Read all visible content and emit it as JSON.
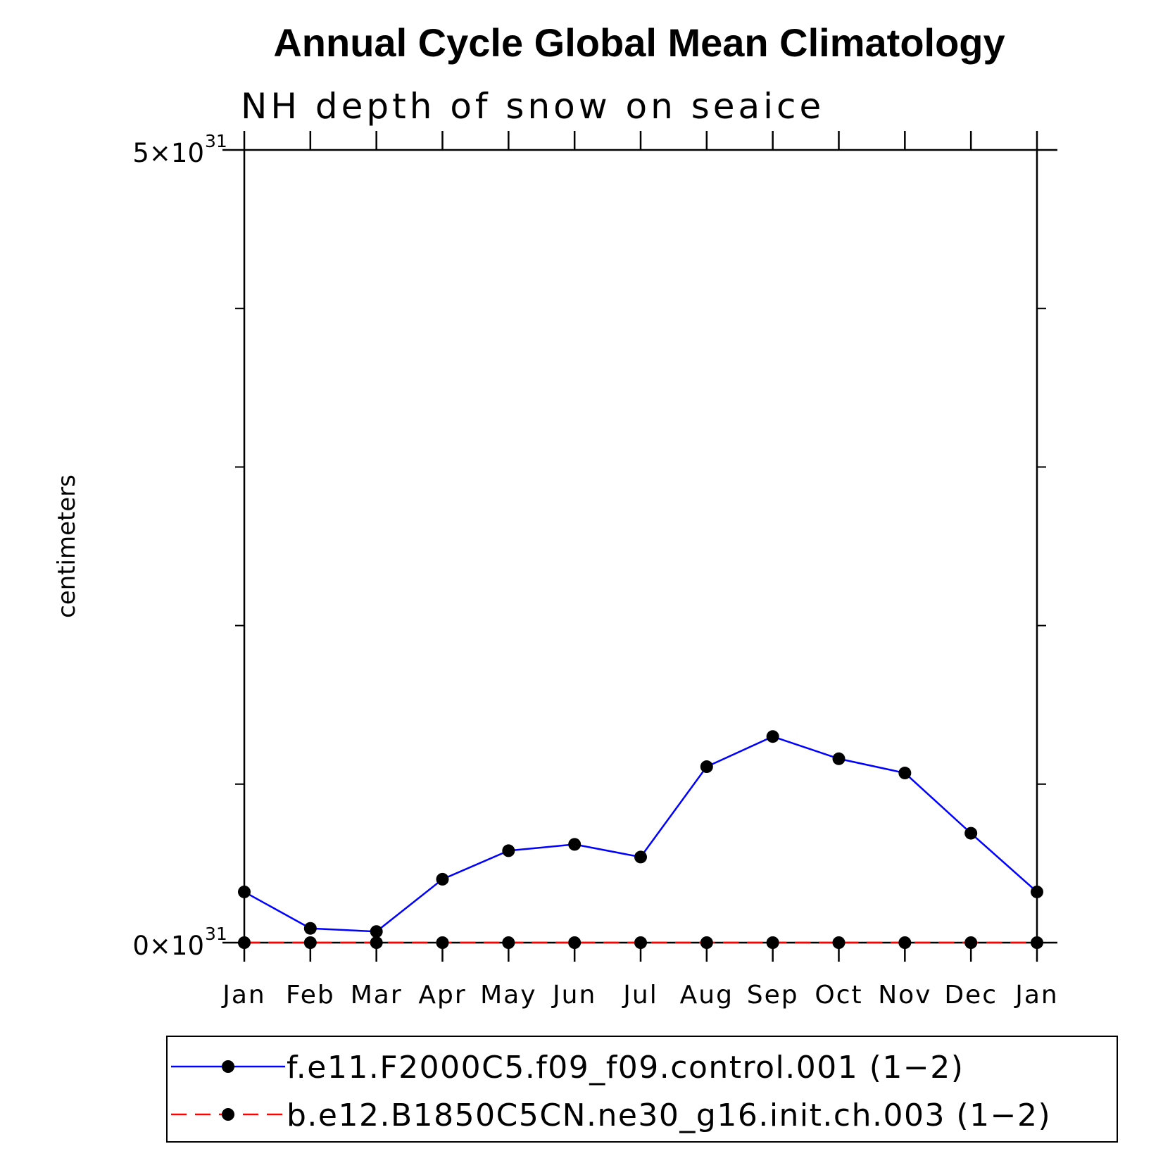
{
  "chart_data": {
    "type": "line",
    "title": "Annual Cycle Global Mean Climatology",
    "subtitle": "NH depth of snow on seaice",
    "ylabel": "centimeters",
    "xlabel": "",
    "categories": [
      "Jan",
      "Feb",
      "Mar",
      "Apr",
      "May",
      "Jun",
      "Jul",
      "Aug",
      "Sep",
      "Oct",
      "Nov",
      "Dec",
      "Jan"
    ],
    "ylim": [
      0,
      5
    ],
    "y_exponent": "31",
    "y_tick_labels": [
      {
        "value": 0,
        "mantissa": "0×10",
        "exp": "31"
      },
      {
        "value": 5,
        "mantissa": "5×10",
        "exp": "31"
      }
    ],
    "y_minor_ticks": [
      1,
      2,
      3,
      4
    ],
    "series": [
      {
        "name": "f.e11.F2000C5.f09_f09.control.001 (1−2)",
        "color": "#0000ff",
        "dash": "solid",
        "marker": "circle",
        "values": [
          0.32,
          0.09,
          0.07,
          0.4,
          0.58,
          0.62,
          0.54,
          1.11,
          1.3,
          1.16,
          1.07,
          0.69,
          0.32
        ]
      },
      {
        "name": "b.e12.B1850C5CN.ne30_g16.init.ch.003 (1−2)",
        "color": "#ff0000",
        "dash": "dashed",
        "marker": "circle",
        "values": [
          0,
          0,
          0,
          0,
          0,
          0,
          0,
          0,
          0,
          0,
          0,
          0,
          0
        ]
      }
    ],
    "legend": "bottom",
    "grid": false
  }
}
